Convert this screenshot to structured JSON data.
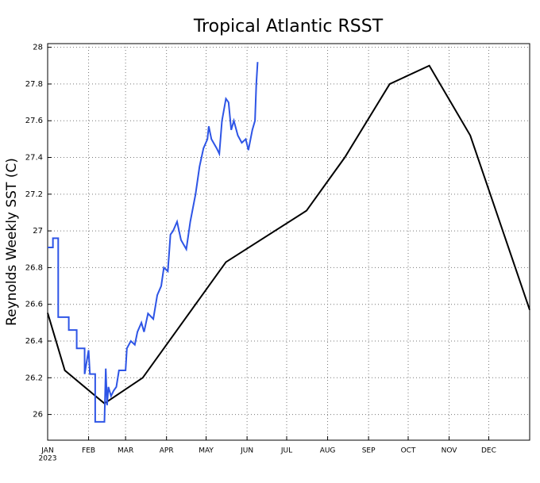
{
  "chart_data": {
    "type": "line",
    "title": "Tropical Atlantic RSST",
    "y_label": "Reynolds Weekly SST (C)",
    "x_year_label": "2023",
    "xlim": [
      0,
      365
    ],
    "ylim": [
      25.86,
      28.02
    ],
    "xticks": [
      {
        "value": 0,
        "label": "JAN"
      },
      {
        "value": 31,
        "label": "FEB"
      },
      {
        "value": 59,
        "label": "MAR"
      },
      {
        "value": 90,
        "label": "APR"
      },
      {
        "value": 120,
        "label": "MAY"
      },
      {
        "value": 151,
        "label": "JUN"
      },
      {
        "value": 181,
        "label": "JUL"
      },
      {
        "value": 212,
        "label": "AUG"
      },
      {
        "value": 243,
        "label": "SEP"
      },
      {
        "value": 273,
        "label": "OCT"
      },
      {
        "value": 304,
        "label": "NOV"
      },
      {
        "value": 334,
        "label": "DEC"
      }
    ],
    "yticks": [
      26,
      26.2,
      26.4,
      26.6,
      26.8,
      27,
      27.2,
      27.4,
      27.6,
      27.8,
      28
    ],
    "grid": true,
    "series": [
      {
        "color": "#000000",
        "x": [
          0,
          13,
          43,
          72,
          135,
          196,
          225,
          259,
          289,
          320,
          365
        ],
        "values": [
          26.553,
          26.24,
          26.06,
          26.2,
          26.83,
          27.11,
          27.4,
          27.8,
          27.9,
          27.52,
          26.57
        ]
      },
      {
        "color": "#2e55e6",
        "x": [
          0,
          4,
          4,
          8,
          8,
          16,
          16,
          22,
          22,
          28,
          28,
          31,
          32,
          36,
          36,
          43,
          44,
          45,
          46,
          48,
          50,
          52,
          54,
          59,
          60,
          63,
          66,
          68,
          71,
          73,
          76,
          80,
          83,
          86,
          88,
          91,
          93,
          95,
          98,
          101,
          105,
          108,
          112,
          115,
          118,
          121,
          122,
          124,
          128,
          130,
          132,
          135,
          137,
          139,
          141,
          144,
          147,
          150,
          152,
          155,
          157,
          158,
          159
        ],
        "values": [
          26.91,
          26.91,
          26.96,
          26.96,
          26.53,
          26.53,
          26.46,
          26.46,
          26.36,
          26.36,
          26.22,
          26.35,
          26.22,
          26.22,
          25.96,
          25.96,
          26.25,
          26.05,
          26.15,
          26.1,
          26.13,
          26.15,
          26.24,
          26.24,
          26.36,
          26.4,
          26.38,
          26.45,
          26.5,
          26.45,
          26.55,
          26.52,
          26.65,
          26.7,
          26.8,
          26.78,
          26.98,
          27.0,
          27.05,
          26.95,
          26.9,
          27.05,
          27.2,
          27.35,
          27.45,
          27.5,
          27.57,
          27.5,
          27.45,
          27.42,
          27.6,
          27.72,
          27.7,
          27.55,
          27.6,
          27.52,
          27.48,
          27.5,
          27.44,
          27.55,
          27.6,
          27.8,
          27.92
        ]
      }
    ]
  }
}
